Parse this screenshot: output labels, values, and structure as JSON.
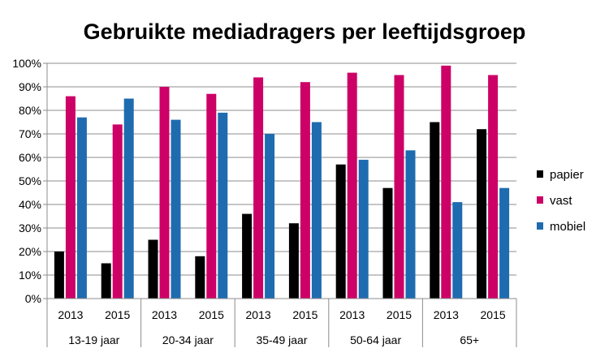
{
  "chart_data": {
    "type": "bar",
    "title": "Gebruikte mediadragers per leeftijdsgroep",
    "xlabel": "",
    "ylabel": "",
    "ylim": [
      0,
      100
    ],
    "yticks": [
      "0%",
      "10%",
      "20%",
      "30%",
      "40%",
      "50%",
      "60%",
      "70%",
      "80%",
      "90%",
      "100%"
    ],
    "groups": [
      {
        "label": "13-19 jaar",
        "years": [
          "2013",
          "2015"
        ]
      },
      {
        "label": "20-34 jaar",
        "years": [
          "2013",
          "2015"
        ]
      },
      {
        "label": "35-49 jaar",
        "years": [
          "2013",
          "2015"
        ]
      },
      {
        "label": "50-64 jaar",
        "years": [
          "2013",
          "2015"
        ]
      },
      {
        "label": "65+",
        "years": [
          "2013",
          "2015"
        ]
      }
    ],
    "categories": [
      "13-19 jaar 2013",
      "13-19 jaar 2015",
      "20-34 jaar 2013",
      "20-34 jaar 2015",
      "35-49 jaar 2013",
      "35-49 jaar 2015",
      "50-64 jaar 2013",
      "50-64 jaar 2015",
      "65+ 2013",
      "65+ 2015"
    ],
    "series": [
      {
        "name": "papier",
        "color": "#000000",
        "values": [
          20,
          15,
          25,
          18,
          36,
          32,
          57,
          47,
          75,
          72
        ]
      },
      {
        "name": "vast",
        "color": "#CC0066",
        "values": [
          86,
          74,
          90,
          87,
          94,
          92,
          96,
          95,
          99,
          95
        ]
      },
      {
        "name": "mobiel",
        "color": "#1F6BB0",
        "values": [
          77,
          85,
          76,
          79,
          70,
          75,
          59,
          63,
          41,
          47
        ]
      }
    ],
    "grid": true,
    "legend": "right"
  }
}
